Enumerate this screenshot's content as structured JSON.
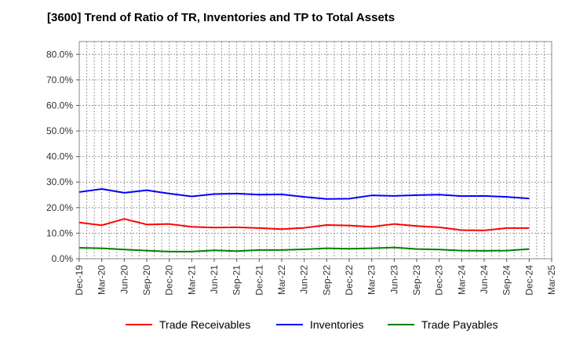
{
  "title": "[3600]  Trend of Ratio of TR, Inventories and TP to Total Assets",
  "chart_data": {
    "type": "line",
    "title": "[3600]  Trend of Ratio of TR, Inventories and TP to Total Assets",
    "xlabel": "",
    "ylabel": "",
    "ylim": [
      0,
      85
    ],
    "yticks": [
      "0.0%",
      "10.0%",
      "20.0%",
      "30.0%",
      "40.0%",
      "50.0%",
      "60.0%",
      "70.0%",
      "80.0%"
    ],
    "ytick_values": [
      0,
      10,
      20,
      30,
      40,
      50,
      60,
      70,
      80
    ],
    "xtick_labels": [
      "Dec-19",
      "Mar-20",
      "Jun-20",
      "Sep-20",
      "Dec-20",
      "Mar-21",
      "Jun-21",
      "Sep-21",
      "Dec-21",
      "Mar-22",
      "Jun-22",
      "Sep-22",
      "Dec-22",
      "Mar-23",
      "Jun-23",
      "Sep-23",
      "Dec-23",
      "Mar-24",
      "Jun-24",
      "Sep-24",
      "Dec-24",
      "Mar-25"
    ],
    "x": [
      "Dec-19",
      "Mar-20",
      "Jun-20",
      "Sep-20",
      "Dec-20",
      "Mar-21",
      "Jun-21",
      "Sep-21",
      "Dec-21",
      "Mar-22",
      "Jun-22",
      "Sep-22",
      "Dec-22",
      "Mar-23",
      "Jun-23",
      "Sep-23",
      "Dec-23",
      "Mar-24",
      "Jun-24",
      "Sep-24",
      "Dec-24"
    ],
    "grid": true,
    "legend_position": "bottom",
    "series": [
      {
        "name": "Trade Receivables",
        "color": "#ff0000",
        "values": [
          14.2,
          13.1,
          15.6,
          13.4,
          13.6,
          12.5,
          12.2,
          12.3,
          12.0,
          11.6,
          12.1,
          13.2,
          13.0,
          12.5,
          13.6,
          12.8,
          12.3,
          11.2,
          11.1,
          12.0,
          12.0
        ]
      },
      {
        "name": "Inventories",
        "color": "#0000ff",
        "values": [
          26.1,
          27.3,
          25.8,
          26.8,
          25.5,
          24.4,
          25.3,
          25.5,
          25.1,
          25.2,
          24.2,
          23.4,
          23.5,
          24.8,
          24.6,
          24.9,
          25.1,
          24.5,
          24.6,
          24.2,
          23.6
        ]
      },
      {
        "name": "Trade Payables",
        "color": "#008000",
        "values": [
          4.3,
          4.1,
          3.6,
          3.2,
          2.8,
          2.8,
          3.3,
          3.0,
          3.4,
          3.4,
          3.7,
          4.1,
          3.9,
          4.1,
          4.4,
          3.8,
          3.6,
          3.2,
          3.1,
          3.2,
          3.8
        ]
      }
    ]
  }
}
